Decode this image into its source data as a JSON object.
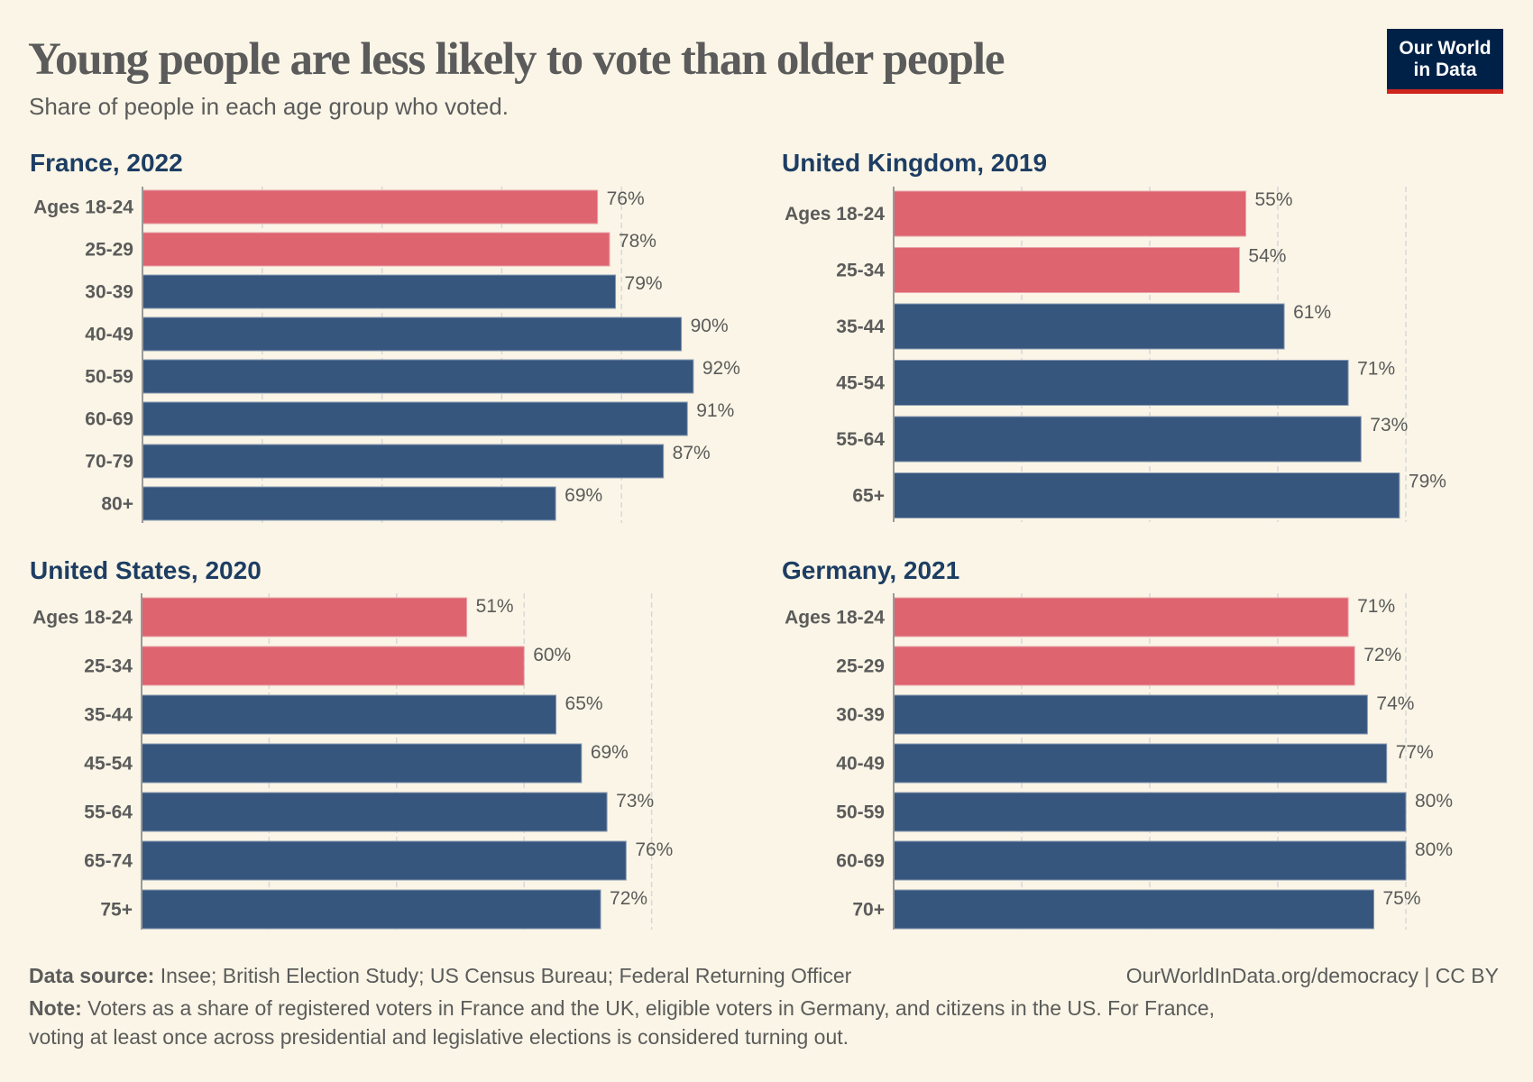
{
  "header": {
    "title": "Young people are less likely to vote than older people",
    "subtitle": "Share of people in each age group who voted."
  },
  "logo": {
    "line1": "Our World",
    "line2": "in Data"
  },
  "colors": {
    "young": "#dd616d",
    "older": "#33537a",
    "panel_title": "#1d3d63",
    "background": "#faf5e6",
    "logo_bg": "#002147",
    "logo_accent": "#ce261e"
  },
  "chart_data": [
    {
      "type": "bar",
      "orientation": "horizontal",
      "title": "France, 2022",
      "categories": [
        "Ages 18-24",
        "25-29",
        "30-39",
        "40-49",
        "50-59",
        "60-69",
        "70-79",
        "80+"
      ],
      "values": [
        76,
        78,
        79,
        90,
        92,
        91,
        87,
        69
      ],
      "labels": [
        "76%",
        "78%",
        "79%",
        "90%",
        "92%",
        "91%",
        "87%",
        "69%"
      ],
      "highlight_young": [
        true,
        true,
        false,
        false,
        false,
        false,
        false,
        false
      ],
      "unit": "%",
      "xlim": [
        0,
        100
      ],
      "gridlines": [
        20,
        40,
        60,
        80
      ],
      "grid": true
    },
    {
      "type": "bar",
      "orientation": "horizontal",
      "title": "United Kingdom, 2019",
      "categories": [
        "Ages 18-24",
        "25-34",
        "35-44",
        "45-54",
        "55-64",
        "65+"
      ],
      "values": [
        55,
        54,
        61,
        71,
        73,
        79
      ],
      "labels": [
        "55%",
        "54%",
        "61%",
        "71%",
        "73%",
        "79%"
      ],
      "highlight_young": [
        true,
        true,
        false,
        false,
        false,
        false
      ],
      "unit": "%",
      "xlim": [
        0,
        80
      ],
      "gridlines": [
        20,
        40,
        60,
        80
      ],
      "grid": true
    },
    {
      "type": "bar",
      "orientation": "horizontal",
      "title": "United States, 2020",
      "categories": [
        "Ages 18-24",
        "25-34",
        "35-44",
        "45-54",
        "55-64",
        "65-74",
        "75+"
      ],
      "values": [
        51,
        60,
        65,
        69,
        73,
        76,
        72
      ],
      "labels": [
        "51%",
        "60%",
        "65%",
        "69%",
        "73%",
        "76%",
        "72%"
      ],
      "highlight_young": [
        true,
        true,
        false,
        false,
        false,
        false,
        false
      ],
      "unit": "%",
      "xlim": [
        0,
        80
      ],
      "gridlines": [
        20,
        40,
        60,
        80
      ],
      "grid": true
    },
    {
      "type": "bar",
      "orientation": "horizontal",
      "title": "Germany, 2021",
      "categories": [
        "Ages 18-24",
        "25-29",
        "30-39",
        "40-49",
        "50-59",
        "60-69",
        "70+"
      ],
      "values": [
        71,
        72,
        74,
        77,
        80,
        80,
        75
      ],
      "labels": [
        "71%",
        "72%",
        "74%",
        "77%",
        "80%",
        "80%",
        "75%"
      ],
      "highlight_young": [
        true,
        true,
        false,
        false,
        false,
        false,
        false
      ],
      "unit": "%",
      "xlim": [
        0,
        80
      ],
      "gridlines": [
        20,
        40,
        60,
        80
      ],
      "grid": true
    }
  ],
  "footer": {
    "source_label": "Data source:",
    "source_text": " Insee; British Election Study; US Census Bureau; Federal Returning Officer",
    "url_license": "OurWorldInData.org/democracy | CC BY",
    "note_label": "Note:",
    "note_line1": " Voters as a share of registered voters in France and the UK, eligible voters in Germany, and citizens in the US. For France,",
    "note_line2": "voting at least once across presidential and legislative elections is considered turning out."
  }
}
